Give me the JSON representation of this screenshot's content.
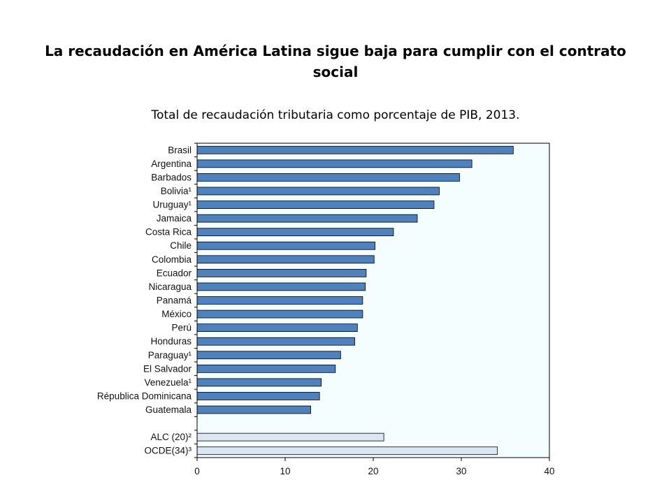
{
  "title": "La recaudación en América Latina sigue baja para cumplir con el contrato social",
  "subtitle": "Total de recaudación tributaria como porcentaje de PIB, 2013.",
  "colors": {
    "bar": "#4f81bd",
    "bar_aggregate": "#dce6f2",
    "plot_background": "#f5feff",
    "border": "#000000"
  },
  "chart_data": {
    "type": "bar",
    "orientation": "horizontal",
    "categories": [
      "Brasil",
      "Argentina",
      "Barbados",
      "Bolivia¹",
      "Uruguay¹",
      "Jamaica",
      "Costa Rica",
      "Chile",
      "Colombia",
      "Ecuador",
      "Nicaragua",
      "Panamá",
      "México",
      "Perú",
      "Honduras",
      "Paraguay¹",
      "El Salvador",
      "Venezuela¹",
      "Républica Dominicana",
      "Guatemala",
      "",
      "ALC (20)²",
      "OCDE(34)³"
    ],
    "values": [
      35.9,
      31.2,
      29.8,
      27.5,
      26.9,
      25.0,
      22.3,
      20.2,
      20.1,
      19.2,
      19.1,
      18.8,
      18.8,
      18.2,
      17.9,
      16.3,
      15.7,
      14.1,
      13.9,
      12.9,
      null,
      21.2,
      34.1
    ],
    "aggregate_categories": [
      "ALC (20)²",
      "OCDE(34)³"
    ],
    "xlim": [
      0,
      40
    ],
    "xticks": [
      "0",
      "10",
      "20",
      "30",
      "40"
    ],
    "grid": false
  }
}
